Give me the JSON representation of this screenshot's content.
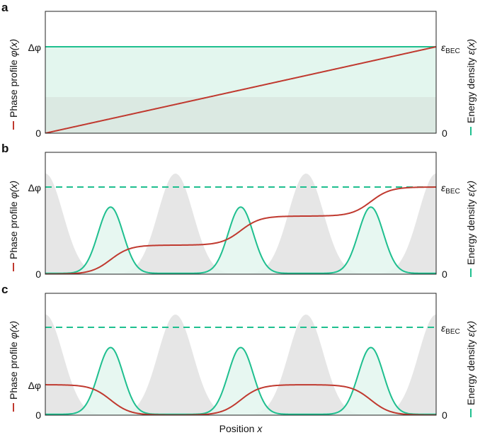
{
  "figure": {
    "xlabel_prefix": "Position ",
    "xlabel_var": "x"
  },
  "colors": {
    "phase": "#c0392f",
    "energy": "#1fbf8f",
    "energy_fill": "#e3f6ee",
    "potential": "#e6e6e6",
    "uniform_dark": "#dbe9e2"
  },
  "chart_data": [
    {
      "panel": "a",
      "type": "line",
      "left_axis": {
        "label_text": "Phase profile ",
        "label_var": "φ(x)",
        "ticks": [
          "0",
          "Δφ"
        ]
      },
      "right_axis": {
        "label_text": "Energy density ",
        "label_var": "ε(x)",
        "ticks": [
          "0",
          "ε",
          "BEC"
        ]
      },
      "grid": false,
      "series": [
        {
          "kind": "phase",
          "shape": "linear",
          "x": [
            0,
            1
          ],
          "y": [
            0,
            1
          ]
        },
        {
          "kind": "energy",
          "shape": "constant",
          "x": [
            0,
            1
          ],
          "y": [
            1,
            1
          ]
        }
      ],
      "potential": "uniform",
      "reference_level": 1
    },
    {
      "panel": "b",
      "type": "line",
      "left_axis": {
        "label_text": "Phase profile ",
        "label_var": "φ(x)",
        "ticks": [
          "0",
          "Δφ"
        ]
      },
      "right_axis": {
        "label_text": "Energy density ",
        "label_var": "ε(x)",
        "ticks": [
          "0",
          "ε",
          "BEC"
        ]
      },
      "grid": false,
      "series": [
        {
          "kind": "phase",
          "shape": "staircase",
          "steps": [
            0,
            0.333,
            0.667,
            1
          ],
          "step_centers": [
            0.167,
            0.5,
            0.833
          ]
        },
        {
          "kind": "energy",
          "shape": "peaks",
          "peak_centers": [
            0.167,
            0.5,
            0.833
          ],
          "peak_height": 0.76
        }
      ],
      "potential": "lattice",
      "lattice_peaks": [
        0.0,
        0.333,
        0.667,
        1.0
      ],
      "reference_level": 1
    },
    {
      "panel": "c",
      "type": "line",
      "left_axis": {
        "label_text": "Phase profile ",
        "label_var": "φ(x)",
        "ticks": [
          "0",
          "Δφ"
        ]
      },
      "right_axis": {
        "label_text": "Energy density ",
        "label_var": "ε(x)",
        "ticks": [
          "0",
          "ε",
          "BEC"
        ]
      },
      "grid": false,
      "series": [
        {
          "kind": "phase",
          "shape": "alternating",
          "levels": [
            1,
            0,
            1,
            0
          ],
          "step_centers": [
            0.167,
            0.5,
            0.833
          ]
        },
        {
          "kind": "energy",
          "shape": "peaks",
          "peak_centers": [
            0.167,
            0.5,
            0.833
          ],
          "peak_height": 0.76
        }
      ],
      "potential": "lattice",
      "lattice_peaks": [
        0.0,
        0.333,
        0.667,
        1.0
      ],
      "reference_level": 1
    }
  ]
}
